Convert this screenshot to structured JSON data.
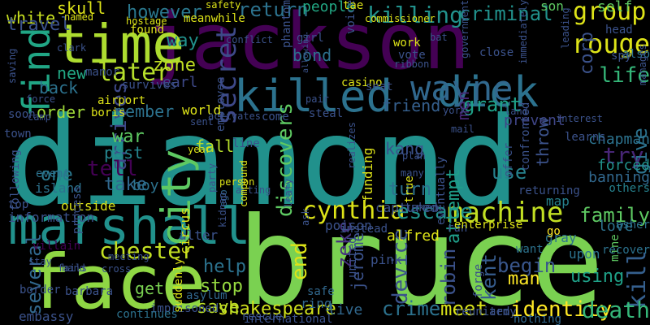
{
  "palette": {
    "background": "#000000",
    "teal": "#21918c",
    "green": "#5ec962",
    "lime": "#8fd744",
    "yellow": "#dde318",
    "purple": "#440154",
    "indigo": "#482677",
    "blue": "#3b528b",
    "steel": "#2c728e",
    "seafoam": "#28ae80"
  },
  "words": [
    {
      "text": "diamond",
      "color": "#21918c"
    },
    {
      "text": "bruce",
      "color": "#7ad151"
    },
    {
      "text": "jackson",
      "color": "#440154"
    },
    {
      "text": "face",
      "color": "#8fd744"
    },
    {
      "text": "marshall",
      "color": "#21918c"
    },
    {
      "text": "time",
      "color": "#addc30"
    },
    {
      "text": "killed",
      "color": "#2c728e"
    },
    {
      "text": "dick",
      "color": "#2c728e"
    },
    {
      "text": "wayne",
      "color": "#31688e"
    },
    {
      "text": "city",
      "color": "#5ec962"
    },
    {
      "text": "rouge",
      "color": "#dde318"
    },
    {
      "text": "group",
      "color": "#dde318"
    },
    {
      "text": "find",
      "color": "#21a685"
    },
    {
      "text": "cynthia",
      "color": "#dde318"
    },
    {
      "text": "machine",
      "color": "#c2df23"
    },
    {
      "text": "chester",
      "color": "#c2df23"
    },
    {
      "text": "secret",
      "color": "#3e4989"
    },
    {
      "text": "killing",
      "color": "#21918c"
    },
    {
      "text": "kill",
      "color": "#355f8d"
    },
    {
      "text": "criminal",
      "color": "#21918c"
    },
    {
      "text": "later",
      "color": "#b5de2b"
    },
    {
      "text": "escape",
      "color": "#21918c"
    },
    {
      "text": "discovers",
      "color": "#5ec962"
    },
    {
      "text": "shakespeare",
      "color": "#d0e11c"
    },
    {
      "text": "identity",
      "color": "#fde725"
    },
    {
      "text": "death",
      "color": "#35b779"
    },
    {
      "text": "end",
      "color": "#dde318"
    },
    {
      "text": "grant",
      "color": "#1fa188"
    },
    {
      "text": "life",
      "color": "#35b779"
    },
    {
      "text": "however",
      "color": "#2a788e"
    },
    {
      "text": "return",
      "color": "#2c728e"
    },
    {
      "text": "family",
      "color": "#5ec962"
    },
    {
      "text": "robin",
      "color": "#3b528b"
    },
    {
      "text": "device",
      "color": "#3b528b"
    },
    {
      "text": "crime",
      "color": "#2c728e"
    },
    {
      "text": "meet",
      "color": "#d8e219"
    },
    {
      "text": "kent",
      "color": "#365c8d"
    },
    {
      "text": "try",
      "color": "#482677"
    },
    {
      "text": "begin",
      "color": "#39568c"
    },
    {
      "text": "using",
      "color": "#1fa188"
    },
    {
      "text": "stop",
      "color": "#95d840"
    },
    {
      "text": "help",
      "color": "#2c728e"
    },
    {
      "text": "save",
      "color": "#bade28"
    },
    {
      "text": "zone",
      "color": "#c2df23"
    },
    {
      "text": "way",
      "color": "#21918c"
    },
    {
      "text": "bond",
      "color": "#2d708e"
    },
    {
      "text": "friend",
      "color": "#355f8d"
    },
    {
      "text": "arrives",
      "color": "#3e4989"
    },
    {
      "text": "tell",
      "color": "#440154"
    },
    {
      "text": "take",
      "color": "#31688e"
    },
    {
      "text": "one",
      "color": "#2a788e"
    },
    {
      "text": "use",
      "color": "#26828e"
    },
    {
      "text": "turn",
      "color": "#2c728e"
    },
    {
      "text": "zeke",
      "color": "#46327e"
    },
    {
      "text": "man",
      "color": "#fde725"
    },
    {
      "text": "several",
      "color": "#31688e"
    },
    {
      "text": "get",
      "color": "#7ad151"
    },
    {
      "text": "white",
      "color": "#c8e020"
    },
    {
      "text": "skull",
      "color": "#dde318"
    },
    {
      "text": "travel",
      "color": "#3b528b"
    },
    {
      "text": "back",
      "color": "#2c728e"
    },
    {
      "text": "order",
      "color": "#a0da39"
    },
    {
      "text": "new",
      "color": "#22a884"
    },
    {
      "text": "earl",
      "color": "#3e4989"
    },
    {
      "text": "member",
      "color": "#2c728e"
    },
    {
      "text": "war",
      "color": "#5ec962"
    },
    {
      "text": "past",
      "color": "#25858e"
    },
    {
      "text": "fall",
      "color": "#b5de2b"
    },
    {
      "text": "people",
      "color": "#22a884"
    },
    {
      "text": "kang",
      "color": "#3b528b"
    },
    {
      "text": "attempt",
      "color": "#1f9e89"
    },
    {
      "text": "men",
      "color": "#482878"
    },
    {
      "text": "prevent",
      "color": "#404688"
    },
    {
      "text": "chapman",
      "color": "#2c728e"
    },
    {
      "text": "give",
      "color": "#2c728e"
    },
    {
      "text": "forced",
      "color": "#21918c"
    },
    {
      "text": "self",
      "color": "#5ec962"
    },
    {
      "text": "corp",
      "color": "#3b528b"
    },
    {
      "text": "son",
      "color": "#5ec962"
    },
    {
      "text": "also",
      "color": "#2c728e"
    },
    {
      "text": "spy",
      "color": "#3b528b"
    },
    {
      "text": "head",
      "color": "#3b528b"
    },
    {
      "text": "throw",
      "color": "#3b528b"
    },
    {
      "text": "banning",
      "color": "#31688e"
    },
    {
      "text": "others",
      "color": "#26828e"
    },
    {
      "text": "map",
      "color": "#26828e"
    },
    {
      "text": "love",
      "color": "#2c728e"
    },
    {
      "text": "asher",
      "color": "#2c728e"
    },
    {
      "text": "gray",
      "color": "#2c728e"
    },
    {
      "text": "go",
      "color": "#fde725"
    },
    {
      "text": "want",
      "color": "#2c728e"
    },
    {
      "text": "upon",
      "color": "#2c728e"
    },
    {
      "text": "mine",
      "color": "#5ec962"
    },
    {
      "text": "recover",
      "color": "#2c728e"
    },
    {
      "text": "boy",
      "color": "#2c728e"
    },
    {
      "text": "outside",
      "color": "#dde318"
    },
    {
      "text": "information",
      "color": "#3b528b"
    },
    {
      "text": "villain",
      "color": "#440154"
    },
    {
      "text": "embassy",
      "color": "#3b528b"
    },
    {
      "text": "imprisoned",
      "color": "#3b528b"
    },
    {
      "text": "continues",
      "color": "#2c728e"
    },
    {
      "text": "suddenly",
      "color": "#dde318"
    },
    {
      "text": "ego",
      "color": "#31688e"
    },
    {
      "text": "alter",
      "color": "#3b528b"
    },
    {
      "text": "circus",
      "color": "#dde318"
    },
    {
      "text": "asylum",
      "color": "#31688e"
    },
    {
      "text": "safe",
      "color": "#31688e"
    },
    {
      "text": "ring",
      "color": "#31688e"
    },
    {
      "text": "live",
      "color": "#31688e"
    },
    {
      "text": "jerome",
      "color": "#3b528b"
    },
    {
      "text": "poison",
      "color": "#3b528b"
    },
    {
      "text": "pink",
      "color": "#3b528b"
    },
    {
      "text": "funding",
      "color": "#dde318"
    },
    {
      "text": "captured",
      "color": "#3b528b"
    },
    {
      "text": "true",
      "color": "#dde318"
    },
    {
      "text": "taken",
      "color": "#3b528b"
    },
    {
      "text": "run",
      "color": "#3b528b"
    },
    {
      "text": "enterprise",
      "color": "#dde318"
    },
    {
      "text": "eventually",
      "color": "#3b528b"
    },
    {
      "text": "army",
      "color": "#3b528b"
    },
    {
      "text": "reunited",
      "color": "#3b528b"
    },
    {
      "text": "nothing",
      "color": "#31688e"
    },
    {
      "text": "forge",
      "color": "#3b528b"
    },
    {
      "text": "international",
      "color": "#3b528b"
    },
    {
      "text": "rescue",
      "color": "#3b528b"
    },
    {
      "text": "united",
      "color": "#3b528b"
    },
    {
      "text": "instead",
      "color": "#3b528b"
    },
    {
      "text": "alfred",
      "color": "#dde318"
    },
    {
      "text": "returning",
      "color": "#3b528b"
    },
    {
      "text": "offer",
      "color": "#3b528b"
    },
    {
      "text": "confronted",
      "color": "#3b528b"
    },
    {
      "text": "learns",
      "color": "#3b528b"
    },
    {
      "text": "interest",
      "color": "#3b528b"
    },
    {
      "text": "person",
      "color": "#dde318"
    },
    {
      "text": "acting",
      "color": "#3b528b"
    },
    {
      "text": "compound",
      "color": "#dde318"
    },
    {
      "text": "party",
      "color": "#3b528b"
    },
    {
      "text": "kidnap",
      "color": "#3b528b"
    },
    {
      "text": "leafy",
      "color": "#3b528b"
    },
    {
      "text": "ask",
      "color": "#3b528b"
    },
    {
      "text": "employee",
      "color": "#3b528b"
    },
    {
      "text": "year",
      "color": "#dde318"
    },
    {
      "text": "line",
      "color": "#3b528b"
    },
    {
      "text": "event",
      "color": "#2c728e"
    },
    {
      "text": "island",
      "color": "#2c728e"
    },
    {
      "text": "following",
      "color": "#3b528b"
    },
    {
      "text": "top",
      "color": "#3b528b"
    },
    {
      "text": "camp",
      "color": "#3b528b"
    },
    {
      "text": "town",
      "color": "#3b528b"
    },
    {
      "text": "soon",
      "color": "#3b528b"
    },
    {
      "text": "force",
      "color": "#3b528b"
    },
    {
      "text": "boris",
      "color": "#dde318"
    },
    {
      "text": "airport",
      "color": "#dde318"
    },
    {
      "text": "survives",
      "color": "#3b528b"
    },
    {
      "text": "manor",
      "color": "#3b528b"
    },
    {
      "text": "clark",
      "color": "#3b528b"
    },
    {
      "text": "saving",
      "color": "#3b528b"
    },
    {
      "text": "named",
      "color": "#dde318"
    },
    {
      "text": "found",
      "color": "#dde318"
    },
    {
      "text": "hostage",
      "color": "#dde318"
    },
    {
      "text": "meanwhile",
      "color": "#dde318"
    },
    {
      "text": "safety",
      "color": "#dde318"
    },
    {
      "text": "conflict",
      "color": "#3b528b"
    },
    {
      "text": "phantom",
      "color": "#3b528b"
    },
    {
      "text": "girl",
      "color": "#3b528b"
    },
    {
      "text": "voice",
      "color": "#3b528b"
    },
    {
      "text": "tae",
      "color": "#dde318"
    },
    {
      "text": "commissioner",
      "color": "#dde318"
    },
    {
      "text": "work",
      "color": "#dde318"
    },
    {
      "text": "bat",
      "color": "#3b528b"
    },
    {
      "text": "vote",
      "color": "#3b528b"
    },
    {
      "text": "ribbon",
      "color": "#3b528b"
    },
    {
      "text": "close",
      "color": "#3b528b"
    },
    {
      "text": "government",
      "color": "#3b528b"
    },
    {
      "text": "immediately",
      "color": "#3b528b"
    },
    {
      "text": "leading",
      "color": "#3b528b"
    },
    {
      "text": "manages",
      "color": "#3b528b"
    },
    {
      "text": "world",
      "color": "#dde318"
    },
    {
      "text": "activates",
      "color": "#3b528b"
    },
    {
      "text": "sent",
      "color": "#3b528b"
    },
    {
      "text": "come",
      "color": "#3b528b"
    },
    {
      "text": "steal",
      "color": "#3b528b"
    },
    {
      "text": "pair",
      "color": "#3b528b"
    },
    {
      "text": "allowing",
      "color": "#3b528b"
    },
    {
      "text": "casino",
      "color": "#dde318"
    },
    {
      "text": "seat",
      "color": "#3b528b"
    },
    {
      "text": "york",
      "color": "#3b528b"
    },
    {
      "text": "land",
      "color": "#3b528b"
    },
    {
      "text": "mail",
      "color": "#3b528b"
    },
    {
      "text": "plan",
      "color": "#3b528b"
    },
    {
      "text": "many",
      "color": "#3b528b"
    },
    {
      "text": "realizes",
      "color": "#3b528b"
    },
    {
      "text": "hand",
      "color": "#3b528b"
    },
    {
      "text": "fails",
      "color": "#3b528b"
    },
    {
      "text": "cross",
      "color": "#3b528b"
    },
    {
      "text": "stay",
      "color": "#3b528b"
    },
    {
      "text": "border",
      "color": "#3b528b"
    },
    {
      "text": "barbara",
      "color": "#3b528b"
    },
    {
      "text": "process",
      "color": "#3b528b"
    },
    {
      "text": "meeting",
      "color": "#3b528b"
    }
  ]
}
